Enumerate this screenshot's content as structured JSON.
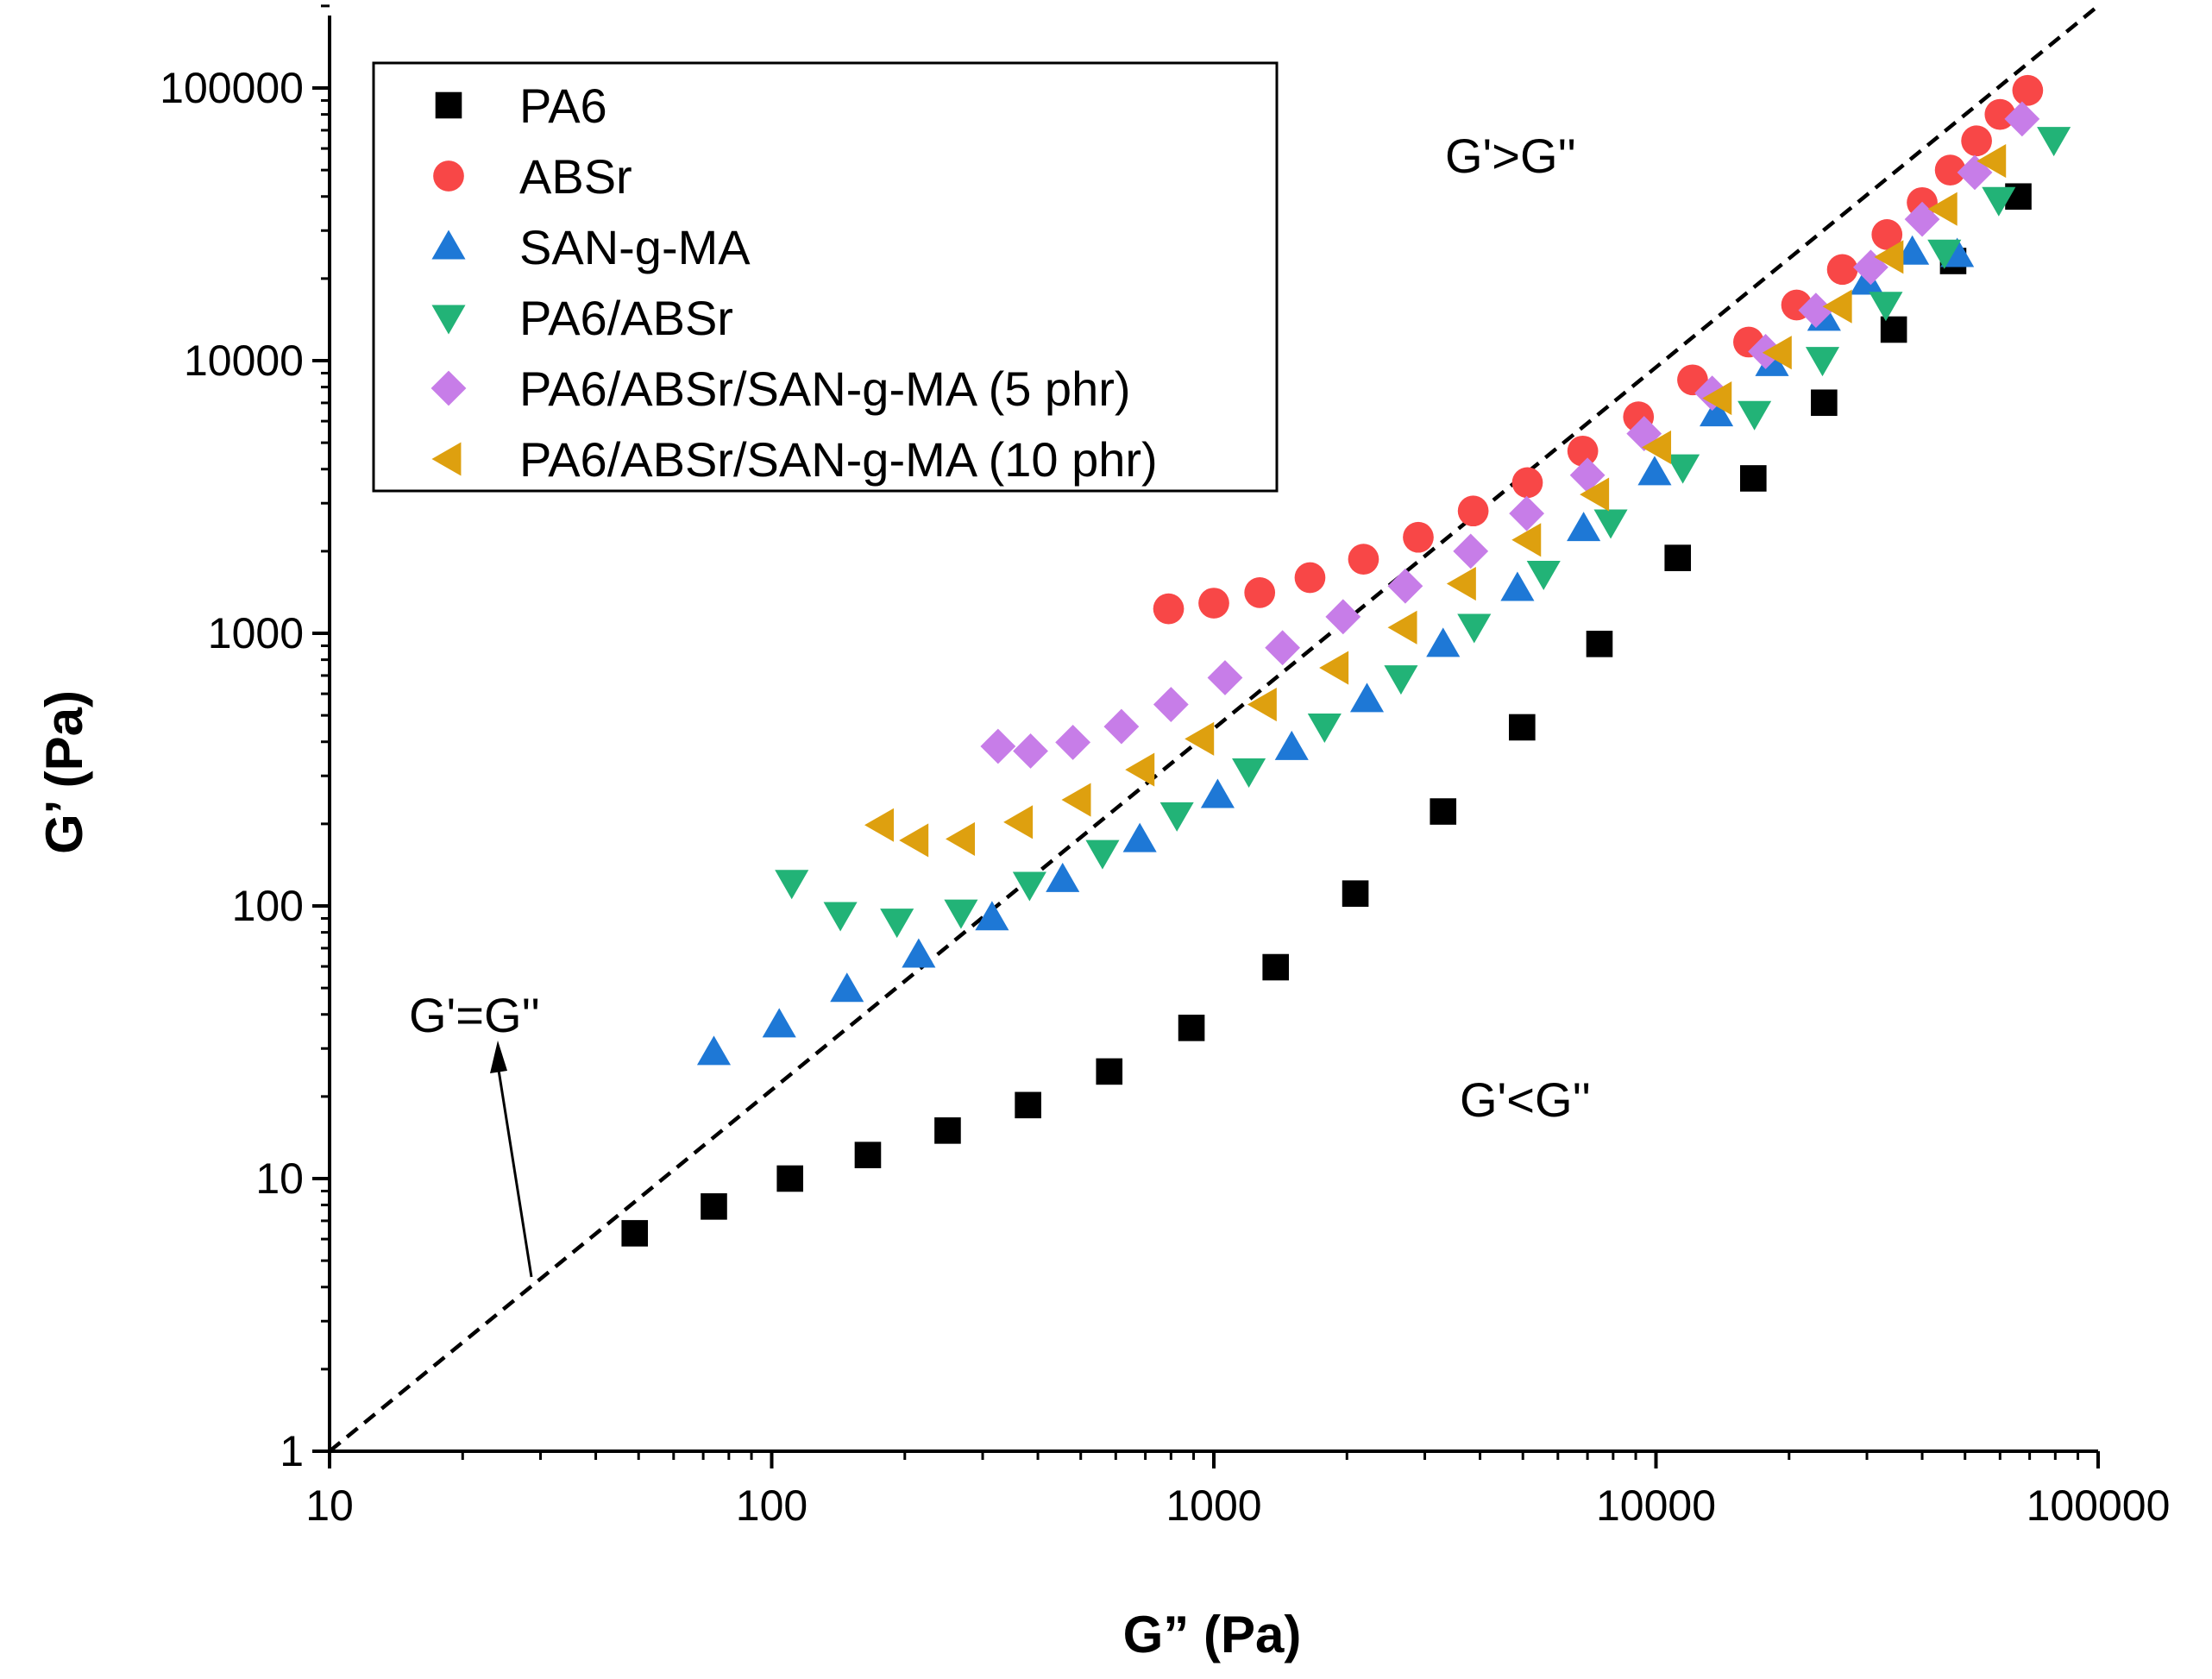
{
  "chart_data": {
    "type": "scatter",
    "xscale": "log",
    "yscale": "log",
    "xlim": [
      10,
      100000
    ],
    "ylim": [
      1,
      200000
    ],
    "xlabel": "G” (Pa)",
    "ylabel": "G’ (Pa)",
    "xticks": [
      "10",
      "100",
      "1000",
      "10000",
      "100000"
    ],
    "yticks": [
      "1",
      "10",
      "100",
      "1000",
      "10000",
      "100000"
    ],
    "legend_position": "top-left",
    "annotations": {
      "upper_region": "G'>G''",
      "lower_region": "G'<G''",
      "reference_line": "G'=G''"
    },
    "reference_line": {
      "style": "dashed",
      "equation": "G' = G''",
      "x": [
        10,
        100000
      ],
      "y": [
        1,
        200000
      ]
    },
    "series": [
      {
        "name": "PA6",
        "marker": "square",
        "color": "#000000",
        "x": [
          49,
          74,
          110,
          165,
          250,
          380,
          580,
          890,
          1380,
          2090,
          3300,
          4980,
          7450,
          11200,
          16600,
          24000,
          34500,
          47000,
          66000
        ],
        "y": [
          6.3,
          7.9,
          10,
          12.2,
          15,
          18.6,
          24.7,
          35.7,
          59.6,
          111,
          222,
          452,
          914,
          1890,
          3700,
          7010,
          13000,
          23200,
          40000
        ]
      },
      {
        "name": "ABSr",
        "marker": "circle",
        "color": "#f84747",
        "x": [
          790,
          1000,
          1270,
          1650,
          2180,
          2900,
          3860,
          5120,
          6830,
          9130,
          12100,
          16200,
          20800,
          26400,
          33300,
          40000,
          46300,
          53100,
          60000,
          69300
        ],
        "y": [
          1230,
          1290,
          1410,
          1600,
          1870,
          2250,
          2810,
          3570,
          4660,
          6220,
          8500,
          11700,
          16000,
          21600,
          29000,
          38000,
          50000,
          64000,
          80000,
          98000
        ]
      },
      {
        "name": "SAN-g-MA",
        "marker": "triangle-up",
        "color": "#1e78d6",
        "x": [
          74,
          104,
          148,
          215,
          315,
          455,
          680,
          1020,
          1500,
          2220,
          3300,
          4860,
          6860,
          9930,
          13700,
          18300,
          24000,
          30000,
          38000,
          48000
        ],
        "y": [
          29,
          36.6,
          49.4,
          66,
          90.4,
          125,
          175,
          254,
          381,
          571,
          910,
          1460,
          2420,
          3880,
          6380,
          9750,
          14300,
          19400,
          25000,
          24500
        ]
      },
      {
        "name": "PA6/ABSr",
        "marker": "triangle-down",
        "color": "#22b377",
        "x": [
          111,
          143,
          192,
          268,
          383,
          560,
          825,
          1200,
          1780,
          2650,
          3880,
          5570,
          7900,
          11500,
          16700,
          23800,
          33100,
          44900,
          59600,
          79400
        ],
        "y": [
          122,
          93,
          88,
          95,
          120,
          157,
          216,
          313,
          457,
          687,
          1060,
          1660,
          2560,
          4080,
          6400,
          10100,
          16100,
          25000,
          39000,
          64800
        ]
      },
      {
        "name": "PA6/ABSr/SAN-g-MA (5 phr)",
        "marker": "diamond",
        "color": "#c77de8",
        "x": [
          325,
          385,
          480,
          618,
          800,
          1060,
          1430,
          1960,
          2710,
          3810,
          5100,
          7000,
          9400,
          13400,
          17700,
          23000,
          30600,
          40000,
          52600,
          67300
        ],
        "y": [
          385,
          370,
          398,
          455,
          548,
          687,
          885,
          1150,
          1490,
          2000,
          2750,
          3800,
          5400,
          7600,
          10800,
          15300,
          22000,
          33000,
          49000,
          77000
        ]
      },
      {
        "name": "PA6/ABSr/SAN-g-MA (10 phr)",
        "marker": "triangle-left",
        "color": "#dea00f",
        "x": [
          177,
          212,
          270,
          365,
          494,
          688,
          938,
          1300,
          1890,
          2700,
          3670,
          5150,
          7340,
          10140,
          13900,
          19000,
          26000,
          34000,
          45000,
          58000
        ],
        "y": [
          198,
          174,
          176,
          203,
          245,
          316,
          410,
          548,
          747,
          1050,
          1520,
          2200,
          3230,
          4810,
          7280,
          10700,
          15800,
          24000,
          36000,
          54000
        ]
      }
    ]
  }
}
